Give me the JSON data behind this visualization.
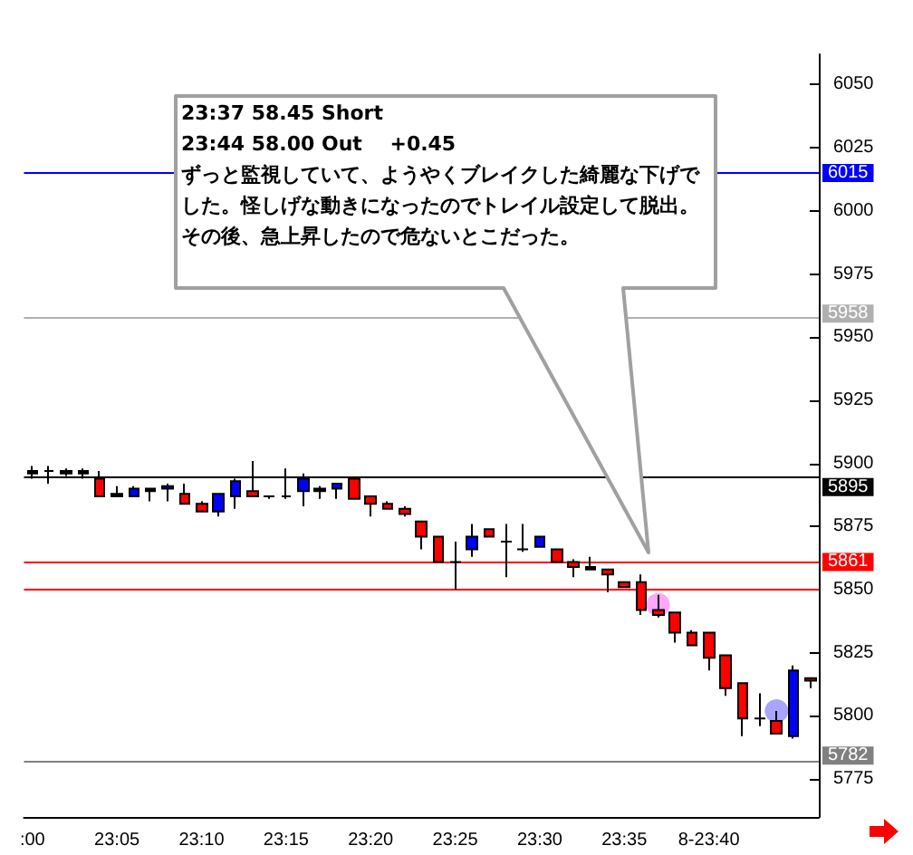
{
  "chart_data": {
    "type": "candlestick",
    "categories": [
      ":00",
      null,
      null,
      null,
      null,
      "23:05",
      null,
      null,
      null,
      null,
      "23:10",
      null,
      null,
      null,
      null,
      "23:15",
      null,
      null,
      null,
      null,
      "23:20",
      null,
      null,
      null,
      null,
      "23:25",
      null,
      null,
      null,
      null,
      "23:30",
      null,
      null,
      null,
      null,
      "23:35",
      null,
      null,
      null,
      null,
      "8-23:40",
      null,
      null,
      null,
      null,
      null,
      null
    ],
    "ohlc": [
      [
        5897,
        5899,
        5894,
        5896
      ],
      [
        5897,
        5899,
        5892,
        5897
      ],
      [
        5897,
        5898,
        5895,
        5896
      ],
      [
        5897,
        5898,
        5894,
        5896
      ],
      [
        5894,
        5897,
        5887,
        5887
      ],
      [
        5888,
        5891,
        5887,
        5887
      ],
      [
        5887,
        5891,
        5887,
        5890
      ],
      [
        5890,
        5890,
        5885,
        5889
      ],
      [
        5890,
        5892,
        5885,
        5891
      ],
      [
        5888,
        5892,
        5884,
        5884
      ],
      [
        5884,
        5885,
        5881,
        5881
      ],
      [
        5881,
        5888,
        5879,
        5888
      ],
      [
        5887,
        5894,
        5882,
        5893
      ],
      [
        5889,
        5901,
        5887,
        5887
      ],
      [
        5887,
        5887,
        5886,
        5887
      ],
      [
        5887,
        5898,
        5886,
        5887
      ],
      [
        5889,
        5896,
        5883,
        5894
      ],
      [
        5890,
        5891,
        5886,
        5889
      ],
      [
        5890,
        5892,
        5886,
        5892
      ],
      [
        5894,
        5894,
        5886,
        5886
      ],
      [
        5887,
        5887,
        5879,
        5884
      ],
      [
        5884,
        5885,
        5882,
        5882
      ],
      [
        5882,
        5883,
        5879,
        5880
      ],
      [
        5877,
        5877,
        5866,
        5871
      ],
      [
        5871,
        5871,
        5861,
        5861
      ],
      [
        5861,
        5869,
        5850,
        5861
      ],
      [
        5866,
        5876,
        5863,
        5871
      ],
      [
        5874,
        5874,
        5871,
        5871
      ],
      [
        5869,
        5876,
        5855,
        5869
      ],
      [
        5866,
        5876,
        5865,
        5866
      ],
      [
        5867,
        5871,
        5867,
        5871
      ],
      [
        5866,
        5866,
        5861,
        5861
      ],
      [
        5861,
        5862,
        5855,
        5859
      ],
      [
        5859,
        5863,
        5858,
        5858
      ],
      [
        5858,
        5858,
        5849,
        5856
      ],
      [
        5853,
        5853,
        5851,
        5851
      ],
      [
        5853,
        5856,
        5840,
        5842
      ],
      [
        5842,
        5848,
        5839,
        5840
      ],
      [
        5841,
        5841,
        5829,
        5833
      ],
      [
        5833,
        5834,
        5828,
        5828
      ],
      [
        5833,
        5833,
        5818,
        5823
      ],
      [
        5824,
        5824,
        5808,
        5811
      ],
      [
        5813,
        5813,
        5792,
        5799
      ],
      [
        5799,
        5809,
        5796,
        5799
      ],
      [
        5798,
        5802,
        5793,
        5793
      ],
      [
        5792,
        5820,
        5791,
        5818
      ],
      [
        5815,
        5815,
        5811,
        5814
      ]
    ],
    "colors": [
      "#000000",
      "#000000",
      "#000000",
      "#000000",
      "#ff0000",
      "#000000",
      "#0000ff",
      "#000000",
      "#0000ff",
      "#ff0000",
      "#ff0000",
      "#0000ff",
      "#0000ff",
      "#ff0000",
      "#000000",
      "#000000",
      "#0000ff",
      "#000000",
      "#0000ff",
      "#ff0000",
      "#ff0000",
      "#ff0000",
      "#ff0000",
      "#ff0000",
      "#ff0000",
      "#000000",
      "#0000ff",
      "#ff0000",
      "#000000",
      "#000000",
      "#0000ff",
      "#ff0000",
      "#ff0000",
      "#000000",
      "#ff0000",
      "#ff0000",
      "#ff0000",
      "#ff0000",
      "#ff0000",
      "#ff0000",
      "#ff0000",
      "#ff0000",
      "#ff0000",
      "#000000",
      "#ff0000",
      "#0000ff",
      "#ff0000"
    ],
    "series": [
      {
        "type": "scatter",
        "color": "#ff80ff",
        "values": [
          null,
          null,
          null,
          null,
          null,
          null,
          null,
          null,
          null,
          null,
          null,
          null,
          null,
          null,
          null,
          null,
          null,
          null,
          null,
          null,
          null,
          null,
          null,
          null,
          null,
          null,
          null,
          null,
          null,
          null,
          null,
          null,
          null,
          null,
          null,
          null,
          null,
          5844,
          null,
          null,
          null,
          null,
          null,
          null,
          null,
          null,
          null
        ]
      },
      {
        "type": "scatter",
        "color": "#8080ff",
        "values": [
          null,
          null,
          null,
          null,
          null,
          null,
          null,
          null,
          null,
          null,
          null,
          null,
          null,
          null,
          null,
          null,
          null,
          null,
          null,
          null,
          null,
          null,
          null,
          null,
          null,
          null,
          null,
          null,
          null,
          null,
          null,
          null,
          null,
          null,
          null,
          null,
          null,
          null,
          null,
          null,
          null,
          null,
          null,
          null,
          5802,
          null,
          null
        ]
      }
    ],
    "marker": "circle",
    "ylim": [
      5760,
      6062
    ],
    "yticks": [
      5775,
      5800,
      5825,
      5850,
      5875,
      5900,
      5925,
      5950,
      5975,
      6000,
      6025,
      6050
    ],
    "ref_lines": [
      {
        "axis": "y",
        "value": 6015,
        "label": "6015",
        "color": "#0000ff"
      },
      {
        "axis": "y",
        "value": 5958,
        "label": "5958",
        "color": "#b0b0b0"
      },
      {
        "axis": "y",
        "value": 5895,
        "label": "5895",
        "color": "#000000"
      },
      {
        "axis": "y",
        "value": 5861,
        "label": "5861",
        "color": "#ff0000"
      },
      {
        "axis": "y",
        "value": 5850,
        "label": null,
        "color": "#ff0000"
      },
      {
        "axis": "y",
        "value": 5782,
        "label": "5782",
        "color": "#808080"
      }
    ],
    "annotations": [
      "23:37 58.45 Short",
      "23:44 58.00 Out    +0.45",
      "ずっと監視していて、ようやくブレイクした綺麗な下げでした。怪しげな動きになったのでトレイル設定して脱出。その後、急上昇したので危ないとこだった。"
    ],
    "grid": false
  }
}
